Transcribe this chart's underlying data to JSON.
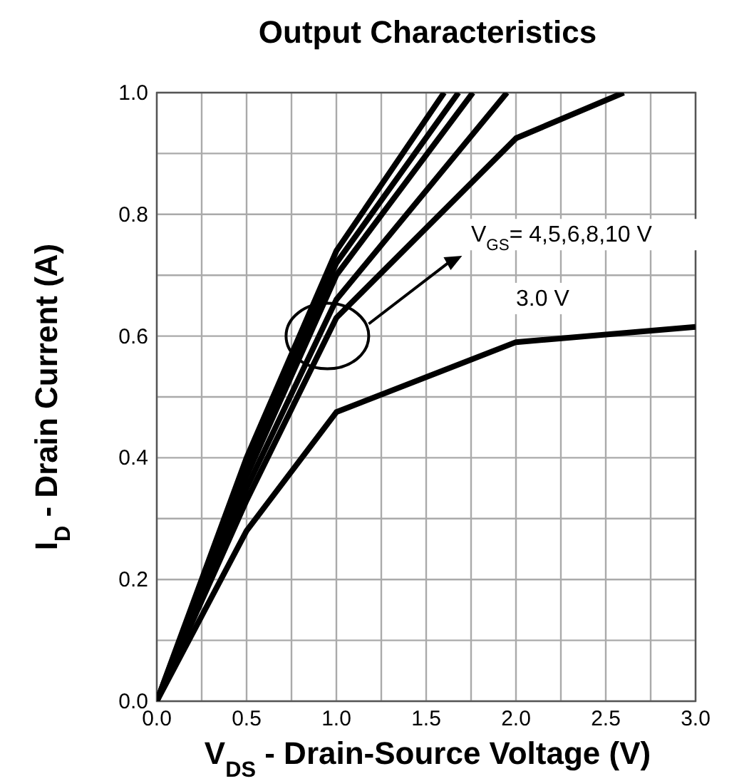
{
  "chart_data": {
    "type": "line",
    "title": "Output Characteristics",
    "xlabel": "V$_{DS}$ - Drain-Source Voltage (V)",
    "ylabel": "I$_{D}$ - Drain Current (A)",
    "xlim": [
      0,
      3
    ],
    "ylim": [
      0,
      1
    ],
    "xticks": [
      {
        "value": 0,
        "label": "0.0"
      },
      {
        "value": 0.25,
        "label": null
      },
      {
        "value": 0.5,
        "label": "0.5"
      },
      {
        "value": 0.75,
        "label": null
      },
      {
        "value": 1,
        "label": "1.0"
      },
      {
        "value": 1.25,
        "label": null
      },
      {
        "value": 1.5,
        "label": "1.5"
      },
      {
        "value": 1.75,
        "label": null
      },
      {
        "value": 2,
        "label": "2.0"
      },
      {
        "value": 2.25,
        "label": null
      },
      {
        "value": 2.5,
        "label": "2.5"
      },
      {
        "value": 2.75,
        "label": null
      },
      {
        "value": 3,
        "label": "3.0"
      }
    ],
    "yticks": [
      {
        "value": 0,
        "label": "0.0"
      },
      {
        "value": 0.1,
        "label": null
      },
      {
        "value": 0.2,
        "label": "0.2"
      },
      {
        "value": 0.3,
        "label": null
      },
      {
        "value": 0.4,
        "label": "0.4"
      },
      {
        "value": 0.5,
        "label": null
      },
      {
        "value": 0.6,
        "label": "0.6"
      },
      {
        "value": 0.7,
        "label": null
      },
      {
        "value": 0.8,
        "label": "0.8"
      },
      {
        "value": 0.9,
        "label": null
      },
      {
        "value": 1,
        "label": "1.0"
      }
    ],
    "grid": true,
    "marker": "none",
    "line_style": "solid",
    "series": [
      {
        "color": "#000000",
        "x": [
          0,
          0.5,
          1.0,
          2.0,
          3.0
        ],
        "values": [
          0,
          0.28,
          0.475,
          0.59,
          0.615
        ]
      },
      {
        "color": "#000000",
        "x": [
          0,
          0.5,
          1.0,
          2.0,
          2.6
        ],
        "values": [
          0,
          0.33,
          0.63,
          0.925,
          1.0
        ]
      },
      {
        "color": "#000000",
        "x": [
          0,
          0.5,
          1.0,
          1.95
        ],
        "values": [
          0,
          0.35,
          0.66,
          1.0
        ]
      },
      {
        "color": "#000000",
        "x": [
          0,
          0.5,
          1.0,
          1.76
        ],
        "values": [
          0,
          0.37,
          0.7,
          1.0
        ]
      },
      {
        "color": "#000000",
        "x": [
          0,
          0.5,
          1.0,
          1.68
        ],
        "values": [
          0,
          0.39,
          0.72,
          1.0
        ]
      },
      {
        "color": "#000000",
        "x": [
          0,
          0.5,
          1.0,
          1.6
        ],
        "values": [
          0,
          0.4,
          0.74,
          1.0
        ]
      }
    ],
    "annotations": [
      "V$_{GS}$= 4,5,6,8,10 V",
      "3.0 V"
    ]
  }
}
